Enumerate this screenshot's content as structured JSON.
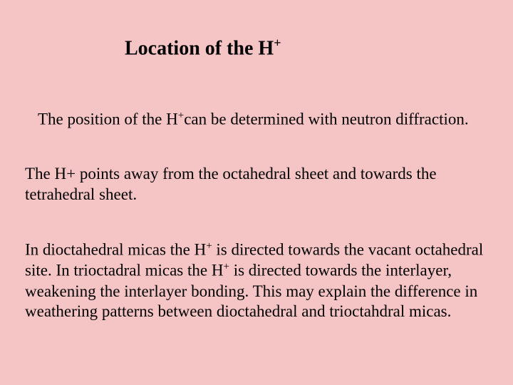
{
  "slide": {
    "background_color": "#f5c4c4",
    "text_color": "#000000",
    "font_family": "Times New Roman",
    "title": {
      "prefix": "Location of the H",
      "sup": "+",
      "fontsize": 28,
      "fontweight": "bold"
    },
    "paragraphs": [
      {
        "runs": [
          {
            "text": "The position of the H"
          },
          {
            "text": "+",
            "sup": true
          },
          {
            "text": "can be determined with neutron diffraction."
          }
        ],
        "fontsize": 23
      },
      {
        "runs": [
          {
            "text": "The H+ points away from the octahedral sheet and towards the tetrahedral sheet."
          }
        ],
        "fontsize": 23
      },
      {
        "runs": [
          {
            "text": "In dioctahedral micas the H"
          },
          {
            "text": "+",
            "sup": true
          },
          {
            "text": " is directed towards the vacant octahedral site. In trioctadral micas the H"
          },
          {
            "text": "+",
            "sup": true
          },
          {
            "text": " is directed towards the interlayer, weakening the interlayer bonding. This may explain the difference in weathering patterns between dioctahedral and trioctahdral micas."
          }
        ],
        "fontsize": 23
      }
    ]
  }
}
